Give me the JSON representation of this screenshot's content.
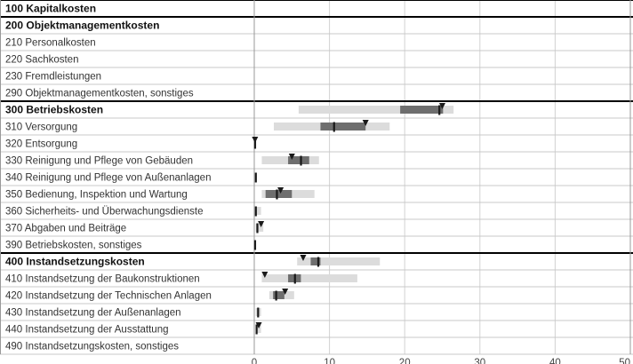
{
  "chart_data": {
    "type": "range-bar",
    "xlim": [
      0,
      50
    ],
    "x_ticks": [
      0,
      10,
      20,
      30,
      40,
      50
    ],
    "rows": [
      {
        "label": "100 Kapitalkosten",
        "bold": true,
        "range": null,
        "inner": null,
        "marker": null,
        "median": null
      },
      {
        "label": "200 Objektmanagementkosten",
        "bold": true,
        "range": null,
        "inner": null,
        "marker": null,
        "median": null
      },
      {
        "label": "210 Personalkosten",
        "bold": false,
        "range": null,
        "inner": null,
        "marker": null,
        "median": null
      },
      {
        "label": "220 Sachkosten",
        "bold": false,
        "range": null,
        "inner": null,
        "marker": null,
        "median": null
      },
      {
        "label": "230 Fremdleistungen",
        "bold": false,
        "range": null,
        "inner": null,
        "marker": null,
        "median": null
      },
      {
        "label": "290 Objektmanagementkosten, sonstiges",
        "bold": false,
        "range": null,
        "inner": null,
        "marker": null,
        "median": null
      },
      {
        "label": "300 Betriebskosten",
        "bold": true,
        "range": [
          5.9,
          26.5
        ],
        "inner": [
          19.4,
          25.1
        ],
        "marker": 25.0,
        "median": 24.6
      },
      {
        "label": "310 Versorgung",
        "bold": false,
        "range": [
          2.6,
          18.0
        ],
        "inner": [
          8.8,
          14.8
        ],
        "marker": 14.8,
        "median": 10.6
      },
      {
        "label": "320 Entsorgung",
        "bold": false,
        "range": null,
        "inner": null,
        "marker": 0.1,
        "median": 0.1
      },
      {
        "label": "330 Reinigung und Pflege von Gebäuden",
        "bold": false,
        "range": [
          1.0,
          8.6
        ],
        "inner": [
          4.5,
          7.3
        ],
        "marker": 5.0,
        "median": 6.2
      },
      {
        "label": "340 Reinigung und Pflege von Außenanlagen",
        "bold": false,
        "range": null,
        "inner": null,
        "marker": null,
        "median": 0.2
      },
      {
        "label": "350 Bedienung, Inspektion und Wartung",
        "bold": false,
        "range": [
          1.0,
          8.0
        ],
        "inner": [
          1.5,
          5.0
        ],
        "marker": 3.5,
        "median": 3.0
      },
      {
        "label": "360 Sicherheits- und Überwachungsdienste",
        "bold": false,
        "range": [
          0.1,
          0.9
        ],
        "inner": null,
        "marker": null,
        "median": 0.2
      },
      {
        "label": "370 Abgaben und Beiträge",
        "bold": false,
        "range": [
          0.2,
          1.2
        ],
        "inner": null,
        "marker": 0.9,
        "median": 0.4
      },
      {
        "label": "390 Betriebskosten, sonstiges",
        "bold": false,
        "range": null,
        "inner": null,
        "marker": null,
        "median": 0.1
      },
      {
        "label": "400 Instandsetzungskosten",
        "bold": true,
        "range": [
          5.7,
          16.7
        ],
        "inner": [
          7.5,
          8.8
        ],
        "marker": 6.5,
        "median": 8.5
      },
      {
        "label": "410 Instandsetzung der Baukonstruktionen",
        "bold": false,
        "range": [
          1.0,
          13.7
        ],
        "inner": [
          4.5,
          6.2
        ],
        "marker": 1.4,
        "median": 5.4
      },
      {
        "label": "420 Instandsetzung der Technischen Anlagen",
        "bold": false,
        "range": [
          2.0,
          5.3
        ],
        "inner": [
          2.5,
          4.0
        ],
        "marker": 4.1,
        "median": 2.9
      },
      {
        "label": "430 Instandsetzung der Außenanlagen",
        "bold": false,
        "range": [
          0.2,
          0.9
        ],
        "inner": null,
        "marker": null,
        "median": 0.5
      },
      {
        "label": "440 Instandsetzung der Ausstattung",
        "bold": false,
        "range": [
          0.2,
          0.9
        ],
        "inner": null,
        "marker": 0.6,
        "median": 0.3
      },
      {
        "label": "490 Instandsetzungskosten, sonstiges",
        "bold": false,
        "range": null,
        "inner": null,
        "marker": null,
        "median": null
      }
    ]
  },
  "colors": {
    "range": "#dcdcdc",
    "inner": "#6e6e6e",
    "marker": "#1a1a1a",
    "median": "#1a1a1a",
    "grid": "#d2d2d2",
    "rule": "#000000"
  }
}
